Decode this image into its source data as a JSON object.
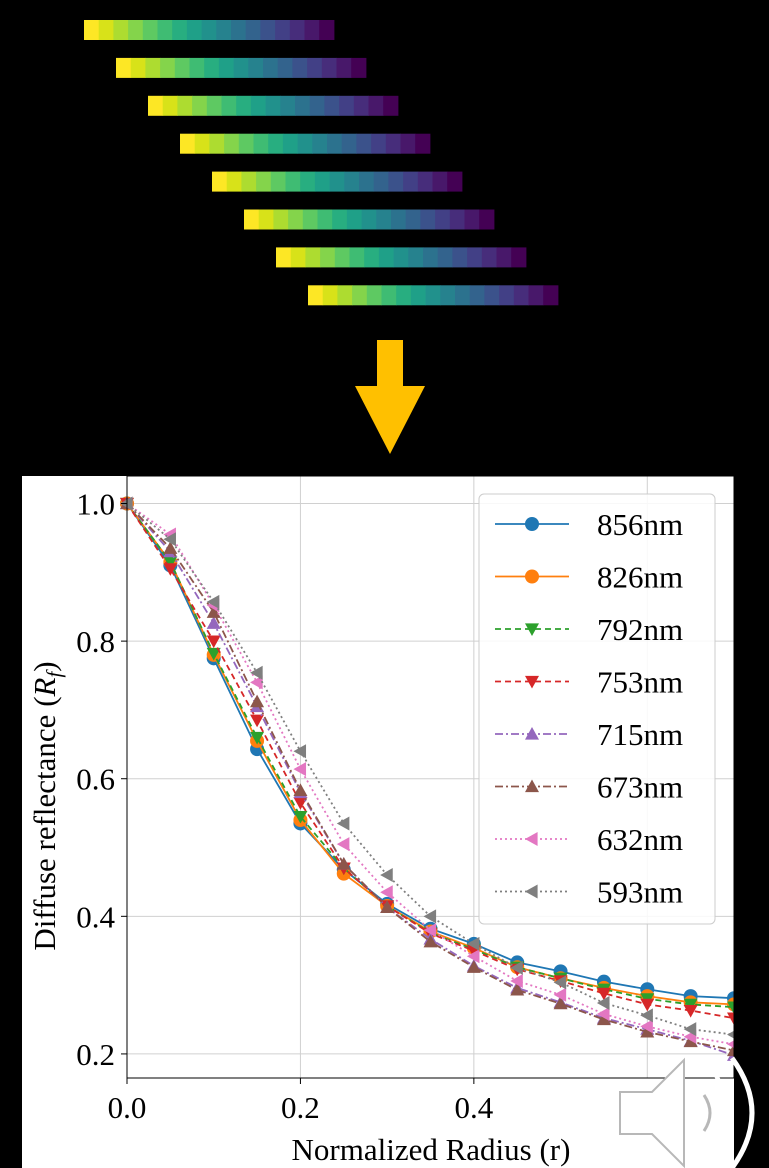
{
  "strip_colors": [
    "#fde725",
    "#d8e219",
    "#addc30",
    "#84d44b",
    "#5ec962",
    "#3fbc73",
    "#28ae80",
    "#1fa088",
    "#21918c",
    "#26828e",
    "#2c728e",
    "#33638d",
    "#3b528b",
    "#424086",
    "#472d7b",
    "#48186a",
    "#440154"
  ],
  "strip_count": 8,
  "arrow_color": "#ffc000",
  "chart_data": {
    "type": "line",
    "xlabel": "Normalized Radius (r)",
    "ylabel": "Diffuse reflectance (R_f)",
    "ylabel_main": "Diffuse reflectance (",
    "ylabel_R": "R",
    "ylabel_sub": "f",
    "ylabel_close": ")",
    "xlim": [
      0.0,
      0.7
    ],
    "ylim": [
      0.165,
      1.04
    ],
    "xticks": [
      0.0,
      0.2,
      0.4
    ],
    "xtick_labels": [
      "0.0",
      "0.2",
      "0.4"
    ],
    "yticks": [
      0.2,
      0.4,
      0.6,
      0.8,
      1.0
    ],
    "ytick_labels": [
      "0.2",
      "0.4",
      "0.6",
      "0.8",
      "1.0"
    ],
    "grid": true,
    "legend_position": "top-right",
    "x": [
      0.0,
      0.05,
      0.1,
      0.15,
      0.2,
      0.25,
      0.3,
      0.35,
      0.4,
      0.45,
      0.5,
      0.55,
      0.6,
      0.65,
      0.7
    ],
    "series": [
      {
        "name": "856nm",
        "color": "#1f77b4",
        "dash": "",
        "marker": "circle",
        "values": [
          1.0,
          0.91,
          0.775,
          0.643,
          0.535,
          0.468,
          0.418,
          0.382,
          0.36,
          0.333,
          0.32,
          0.305,
          0.294,
          0.284,
          0.281
        ]
      },
      {
        "name": "826nm",
        "color": "#ff7f0e",
        "dash": "",
        "marker": "circle",
        "values": [
          1.0,
          0.915,
          0.78,
          0.655,
          0.54,
          0.462,
          0.415,
          0.378,
          0.354,
          0.326,
          0.31,
          0.296,
          0.284,
          0.275,
          0.272
        ]
      },
      {
        "name": "792nm",
        "color": "#2ca02c",
        "dash": "6,4",
        "marker": "triangle-down",
        "values": [
          1.0,
          0.915,
          0.782,
          0.66,
          0.545,
          0.47,
          0.415,
          0.376,
          0.352,
          0.326,
          0.31,
          0.294,
          0.28,
          0.272,
          0.268
        ]
      },
      {
        "name": "753nm",
        "color": "#d62728",
        "dash": "6,4",
        "marker": "triangle-down",
        "values": [
          1.0,
          0.905,
          0.8,
          0.685,
          0.565,
          0.47,
          0.415,
          0.375,
          0.35,
          0.323,
          0.306,
          0.288,
          0.272,
          0.263,
          0.252
        ]
      },
      {
        "name": "715nm",
        "color": "#9467bd",
        "dash": "8,3,2,3",
        "marker": "triangle-up",
        "values": [
          1.0,
          0.93,
          0.826,
          0.705,
          0.58,
          0.476,
          0.413,
          0.367,
          0.328,
          0.296,
          0.275,
          0.252,
          0.236,
          0.219,
          0.198
        ]
      },
      {
        "name": "673nm",
        "color": "#8c564b",
        "dash": "8,3,2,3",
        "marker": "triangle-up",
        "values": [
          1.0,
          0.935,
          0.842,
          0.712,
          0.583,
          0.476,
          0.413,
          0.363,
          0.326,
          0.293,
          0.273,
          0.25,
          0.232,
          0.218,
          0.205
        ]
      },
      {
        "name": "632nm",
        "color": "#e377c2",
        "dash": "2,3",
        "marker": "triangle-left",
        "values": [
          1.0,
          0.955,
          0.852,
          0.74,
          0.614,
          0.505,
          0.435,
          0.38,
          0.342,
          0.306,
          0.286,
          0.258,
          0.24,
          0.225,
          0.214
        ]
      },
      {
        "name": "593nm",
        "color": "#7f7f7f",
        "dash": "2,3",
        "marker": "triangle-left",
        "values": [
          1.0,
          0.948,
          0.857,
          0.754,
          0.64,
          0.535,
          0.46,
          0.4,
          0.36,
          0.325,
          0.304,
          0.274,
          0.256,
          0.236,
          0.228
        ]
      }
    ]
  }
}
